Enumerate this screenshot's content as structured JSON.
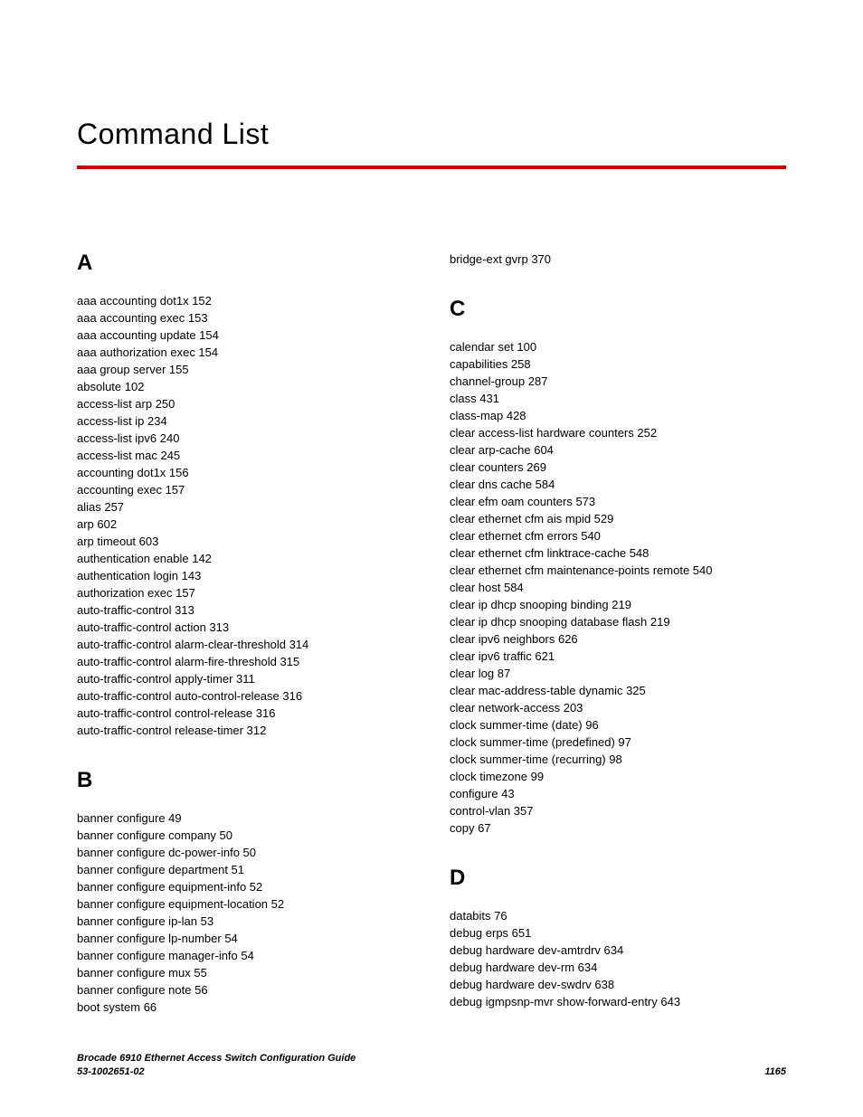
{
  "title": "Command List",
  "orphan_right": "bridge-ext gvrp 370",
  "sections": {
    "A": [
      "aaa accounting dot1x 152",
      "aaa accounting exec 153",
      "aaa accounting update 154",
      "aaa authorization exec 154",
      "aaa group server 155",
      "absolute 102",
      "access-list arp 250",
      "access-list ip 234",
      "access-list ipv6 240",
      "access-list mac 245",
      "accounting dot1x 156",
      "accounting exec 157",
      "alias 257",
      "arp 602",
      "arp timeout 603",
      "authentication enable 142",
      "authentication login 143",
      "authorization exec 157",
      "auto-traffic-control 313",
      "auto-traffic-control action 313",
      "auto-traffic-control alarm-clear-threshold 314",
      "auto-traffic-control alarm-fire-threshold 315",
      "auto-traffic-control apply-timer 311",
      "auto-traffic-control auto-control-release 316",
      "auto-traffic-control control-release 316",
      "auto-traffic-control release-timer 312"
    ],
    "B": [
      "banner configure 49",
      "banner configure company 50",
      "banner configure dc-power-info 50",
      "banner configure department 51",
      "banner configure equipment-info 52",
      "banner configure equipment-location 52",
      "banner configure ip-lan 53",
      "banner configure lp-number 54",
      "banner configure manager-info 54",
      "banner configure mux 55",
      "banner configure note 56",
      "boot system 66"
    ],
    "C": [
      "calendar set 100",
      "capabilities 258",
      "channel-group  287",
      "class 431",
      "class-map 428",
      "clear access-list hardware counters 252",
      "clear arp-cache 604",
      "clear counters 269",
      "clear dns cache 584",
      "clear efm oam counters 573",
      "clear ethernet cfm ais mpid 529",
      "clear ethernet cfm errors 540",
      "clear ethernet cfm linktrace-cache 548",
      "clear ethernet cfm maintenance-points remote 540",
      "clear host 584",
      "clear ip dhcp snooping binding 219",
      "clear ip dhcp snooping database flash 219",
      "clear ipv6 neighbors 626",
      "clear ipv6 traffic 621",
      "clear log 87",
      "clear mac-address-table dynamic 325",
      "clear network-access 203",
      "clock summer-time (date) 96",
      "clock summer-time (predefined) 97",
      "clock summer-time (recurring) 98",
      "clock timezone 99",
      "configure 43",
      "control-vlan 357",
      "copy 67"
    ],
    "D": [
      "databits 76",
      "debug erps 651",
      "debug hardware dev-amtrdrv 634",
      "debug hardware dev-rm 634",
      "debug hardware dev-swdrv 638",
      "debug igmpsnp-mvr show-forward-entry 643"
    ]
  },
  "letters": {
    "A": "A",
    "B": "B",
    "C": "C",
    "D": "D"
  },
  "footer": {
    "line1": "Brocade 6910 Ethernet Access Switch Configuration Guide",
    "line2": "53-1002651-02",
    "page": "1165"
  }
}
